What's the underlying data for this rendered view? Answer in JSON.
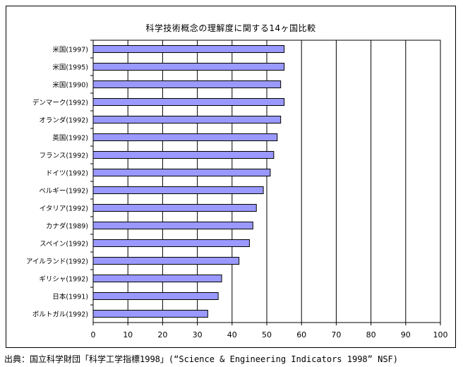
{
  "title": "科学技術概念の理解度に関する14ヶ国比較",
  "source": "出典：国立科学財団「科学工学指標1998」(“Science & Engineering Indicators 1998” NSF)",
  "colors": {
    "bar_fill": "#9999ff",
    "bar_stroke": "#000000",
    "grid": "#000000"
  },
  "chart_data": {
    "type": "bar",
    "orientation": "horizontal",
    "title": "科学技術概念の理解度に関する14ヶ国比較",
    "xlabel": "",
    "ylabel": "",
    "xlim": [
      0,
      100
    ],
    "x_ticks": [
      "0",
      "10",
      "20",
      "30",
      "40",
      "50",
      "60",
      "70",
      "80",
      "90",
      "100"
    ],
    "grid": true,
    "legend": "none",
    "categories": [
      "米国(1997)",
      "米国(1995)",
      "米国(1990)",
      "デンマーク(1992)",
      "オランダ(1992)",
      "英国(1992)",
      "フランス(1992)",
      "ドイツ(1992)",
      "ベルギー(1992)",
      "イタリア(1992)",
      "カナダ(1989)",
      "スペイン(1992)",
      "アイルランド(1992)",
      "ギリシャ(1992)",
      "日本(1991)",
      "ポルトガル(1992)"
    ],
    "values": [
      55,
      55,
      54,
      55,
      54,
      53,
      52,
      51,
      49,
      47,
      46,
      45,
      42,
      37,
      36,
      33
    ]
  }
}
